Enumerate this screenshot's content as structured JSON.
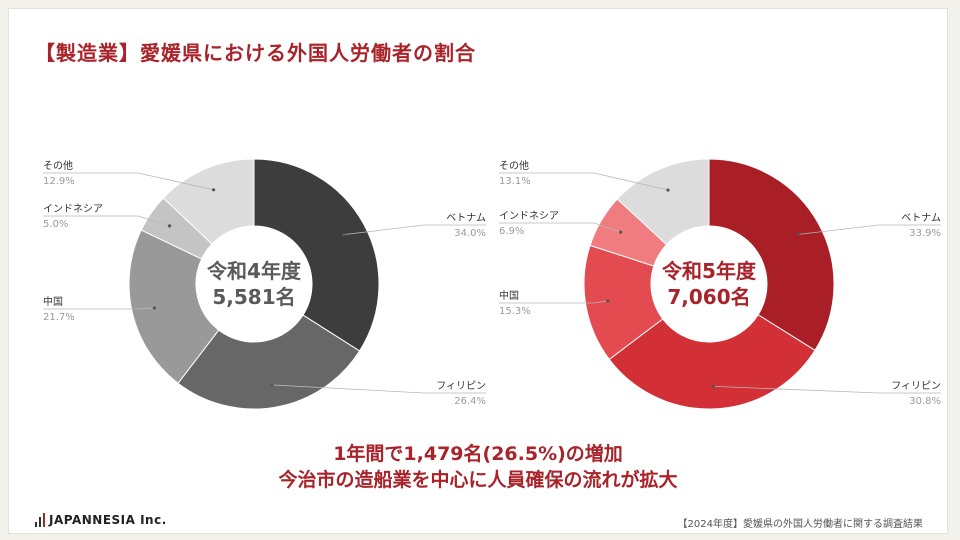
{
  "title": "【製造業】愛媛県における外国人労働者の割合",
  "chart_data": [
    {
      "type": "pie",
      "center_label_line1": "令和4年度",
      "center_label_line2": "5,581名",
      "slices": [
        {
          "label": "ベトナム",
          "pct_text": "34.0%",
          "value": 34.0,
          "color": "#3d3d3d"
        },
        {
          "label": "フィリピン",
          "pct_text": "26.4%",
          "value": 26.4,
          "color": "#676767"
        },
        {
          "label": "中国",
          "pct_text": "21.7%",
          "value": 21.7,
          "color": "#999999"
        },
        {
          "label": "インドネシア",
          "pct_text": "5.0%",
          "value": 5.0,
          "color": "#c4c4c4"
        },
        {
          "label": "その他",
          "pct_text": "12.9%",
          "value": 12.9,
          "color": "#dcdcdc"
        }
      ]
    },
    {
      "type": "pie",
      "center_label_line1": "令和5年度",
      "center_label_line2": "7,060名",
      "slices": [
        {
          "label": "ベトナム",
          "pct_text": "33.9%",
          "value": 33.9,
          "color": "#aa1e25"
        },
        {
          "label": "フィリピン",
          "pct_text": "30.8%",
          "value": 30.8,
          "color": "#d22f36"
        },
        {
          "label": "中国",
          "pct_text": "15.3%",
          "value": 15.3,
          "color": "#e34b50"
        },
        {
          "label": "インドネシア",
          "pct_text": "6.9%",
          "value": 6.9,
          "color": "#f07c80"
        },
        {
          "label": "その他",
          "pct_text": "13.1%",
          "value": 13.1,
          "color": "#dcdcdc"
        }
      ]
    }
  ],
  "summary": {
    "line1": "1年間で1,479名(26.5%)の増加",
    "line2": "今治市の造船業を中心に人員確保の流れが拡大"
  },
  "footer": {
    "logo_text": "JAPANNESIA Inc.",
    "source": "【2024年度】愛媛県の外国人労働者に関する調査結果"
  },
  "colors": {
    "accent": "#a8232a",
    "center_text_r4": "#5a5a5a",
    "center_text_r5": "#a8232a"
  }
}
